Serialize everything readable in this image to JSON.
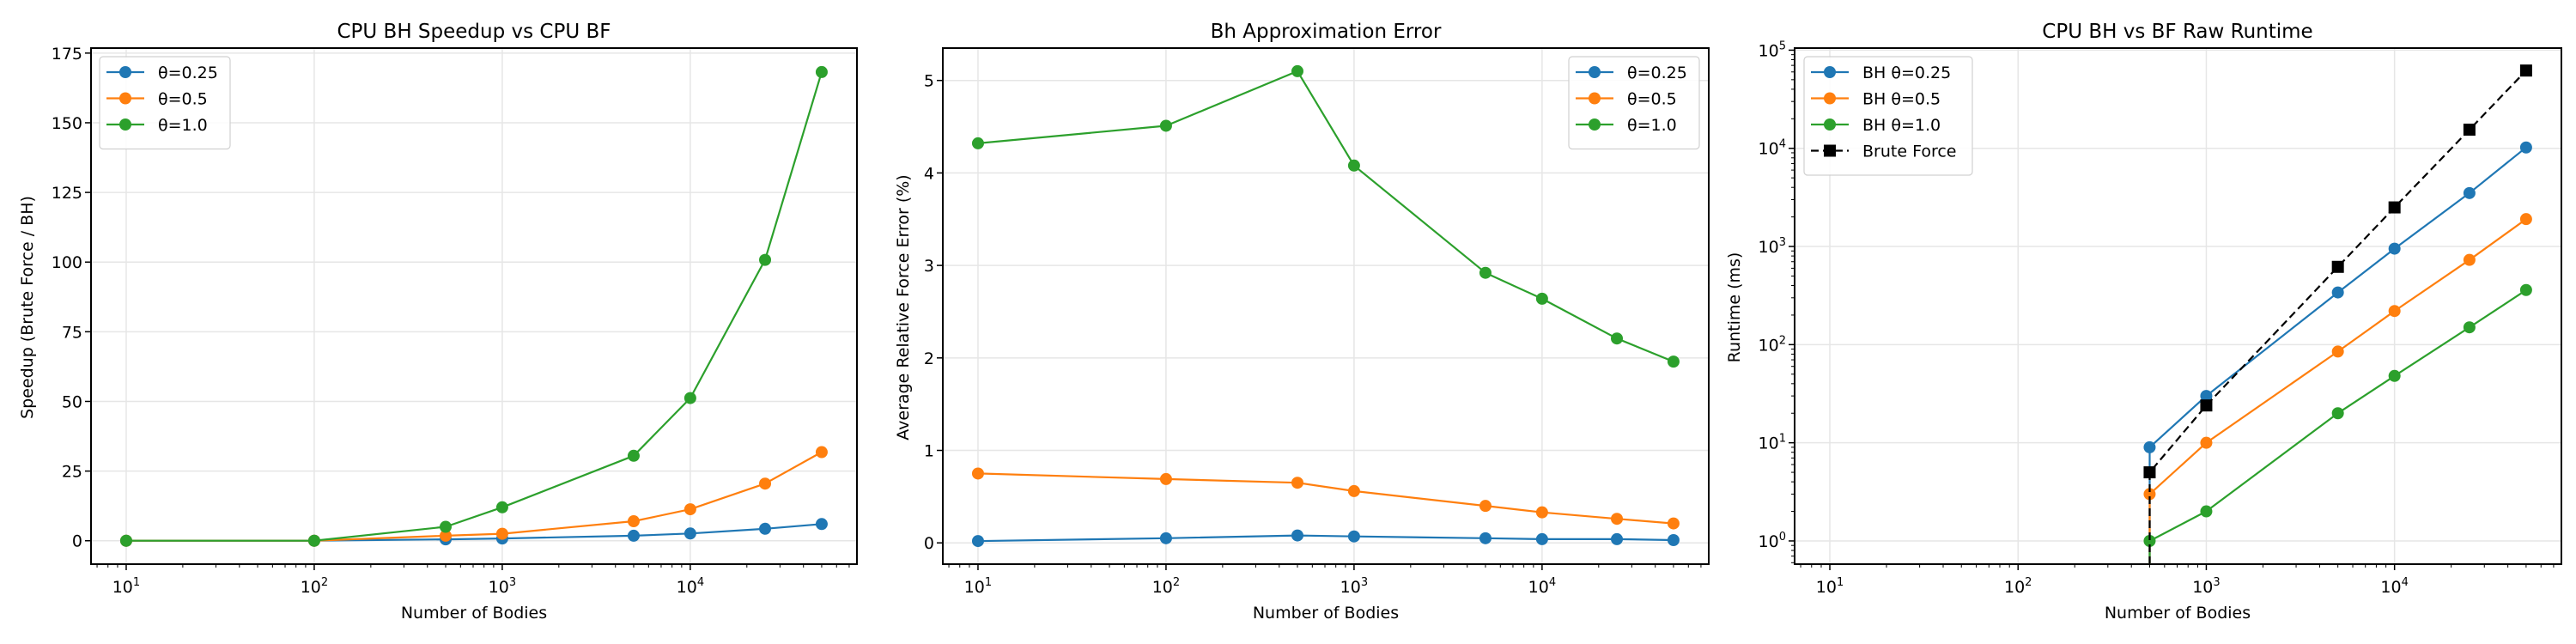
{
  "chart_data": [
    {
      "type": "line",
      "title": "CPU BH Speedup vs CPU BF",
      "xlabel": "Number of Bodies",
      "ylabel": "Speedup (Brute Force / BH)",
      "xscale": "log",
      "yscale": "linear",
      "xlim": [
        6.5,
        77000
      ],
      "ylim": [
        -8.4,
        176.8
      ],
      "xticks": [
        10,
        100,
        1000,
        10000
      ],
      "xtick_labels": [
        [
          "10",
          "1"
        ],
        [
          "10",
          "2"
        ],
        [
          "10",
          "3"
        ],
        [
          "10",
          "4"
        ]
      ],
      "yticks": [
        0,
        25,
        50,
        75,
        100,
        125,
        150,
        175
      ],
      "ytick_labels": [
        "0",
        "25",
        "50",
        "75",
        "100",
        "125",
        "150",
        "175"
      ],
      "grid": true,
      "legend_position": "top-left",
      "x": [
        10,
        100,
        500,
        1000,
        5000,
        10000,
        25000,
        50000
      ],
      "series": [
        {
          "name": "θ=0.25",
          "color": "#1f77b4",
          "marker": "circle",
          "style": "solid",
          "values": [
            0,
            0,
            0.5,
            0.8,
            1.8,
            2.6,
            4.3,
            6.0
          ]
        },
        {
          "name": "θ=0.5",
          "color": "#ff7f0e",
          "marker": "circle",
          "style": "solid",
          "values": [
            0,
            0,
            1.8,
            2.5,
            7.0,
            11.3,
            20.5,
            31.8
          ]
        },
        {
          "name": "θ=1.0",
          "color": "#2ca02c",
          "marker": "circle",
          "style": "solid",
          "values": [
            0,
            0,
            5.0,
            12.0,
            30.5,
            51.2,
            100.8,
            168.2
          ]
        }
      ]
    },
    {
      "type": "line",
      "title": "Bh Approximation Error",
      "xlabel": "Number of Bodies",
      "ylabel": "Average Relative Force Error (%)",
      "xscale": "log",
      "yscale": "linear",
      "xlim": [
        6.5,
        77000
      ],
      "ylim": [
        -0.23,
        5.35
      ],
      "xticks": [
        10,
        100,
        1000,
        10000
      ],
      "xtick_labels": [
        [
          "10",
          "1"
        ],
        [
          "10",
          "2"
        ],
        [
          "10",
          "3"
        ],
        [
          "10",
          "4"
        ]
      ],
      "yticks": [
        0,
        1,
        2,
        3,
        4,
        5
      ],
      "ytick_labels": [
        "0",
        "1",
        "2",
        "3",
        "4",
        "5"
      ],
      "grid": true,
      "legend_position": "top-right",
      "x": [
        10,
        100,
        500,
        1000,
        5000,
        10000,
        25000,
        50000
      ],
      "series": [
        {
          "name": "θ=0.25",
          "color": "#1f77b4",
          "marker": "circle",
          "style": "solid",
          "values": [
            0.02,
            0.05,
            0.08,
            0.07,
            0.05,
            0.04,
            0.04,
            0.03
          ]
        },
        {
          "name": "θ=0.5",
          "color": "#ff7f0e",
          "marker": "circle",
          "style": "solid",
          "values": [
            0.75,
            0.69,
            0.65,
            0.56,
            0.4,
            0.33,
            0.26,
            0.21
          ]
        },
        {
          "name": "θ=1.0",
          "color": "#2ca02c",
          "marker": "circle",
          "style": "solid",
          "values": [
            4.32,
            4.51,
            5.1,
            4.08,
            2.92,
            2.64,
            2.21,
            1.96
          ]
        }
      ]
    },
    {
      "type": "line",
      "title": "CPU BH vs BF Raw Runtime",
      "xlabel": "Number of Bodies",
      "ylabel": "Runtime (ms)",
      "xscale": "log",
      "yscale": "log",
      "xlim": [
        6.5,
        77000
      ],
      "ylim": [
        0.58,
        105000
      ],
      "xticks": [
        10,
        100,
        1000,
        10000
      ],
      "xtick_labels": [
        [
          "10",
          "1"
        ],
        [
          "10",
          "2"
        ],
        [
          "10",
          "3"
        ],
        [
          "10",
          "4"
        ]
      ],
      "yticks": [
        1,
        10,
        100,
        1000,
        10000,
        100000
      ],
      "ytick_labels": [
        [
          "10",
          "0"
        ],
        [
          "10",
          "1"
        ],
        [
          "10",
          "2"
        ],
        [
          "10",
          "3"
        ],
        [
          "10",
          "4"
        ],
        [
          "10",
          "5"
        ]
      ],
      "grid": true,
      "legend_position": "top-left",
      "x": [
        10,
        100,
        500,
        1000,
        5000,
        10000,
        25000,
        50000
      ],
      "series": [
        {
          "name": "BH θ=0.25",
          "color": "#1f77b4",
          "marker": "circle",
          "style": "solid",
          "values": [
            0,
            0,
            9,
            30,
            340,
            950,
            3500,
            10200
          ]
        },
        {
          "name": "BH θ=0.5",
          "color": "#ff7f0e",
          "marker": "circle",
          "style": "solid",
          "values": [
            0,
            0,
            3,
            10,
            85,
            220,
            730,
            1900
          ]
        },
        {
          "name": "BH θ=1.0",
          "color": "#2ca02c",
          "marker": "circle",
          "style": "solid",
          "values": [
            0,
            0,
            1,
            2,
            20,
            48,
            150,
            360
          ]
        },
        {
          "name": "Brute Force",
          "color": "#000000",
          "marker": "square",
          "style": "dashed",
          "values": [
            0,
            0,
            5,
            24,
            620,
            2500,
            15500,
            62000
          ]
        }
      ]
    }
  ]
}
